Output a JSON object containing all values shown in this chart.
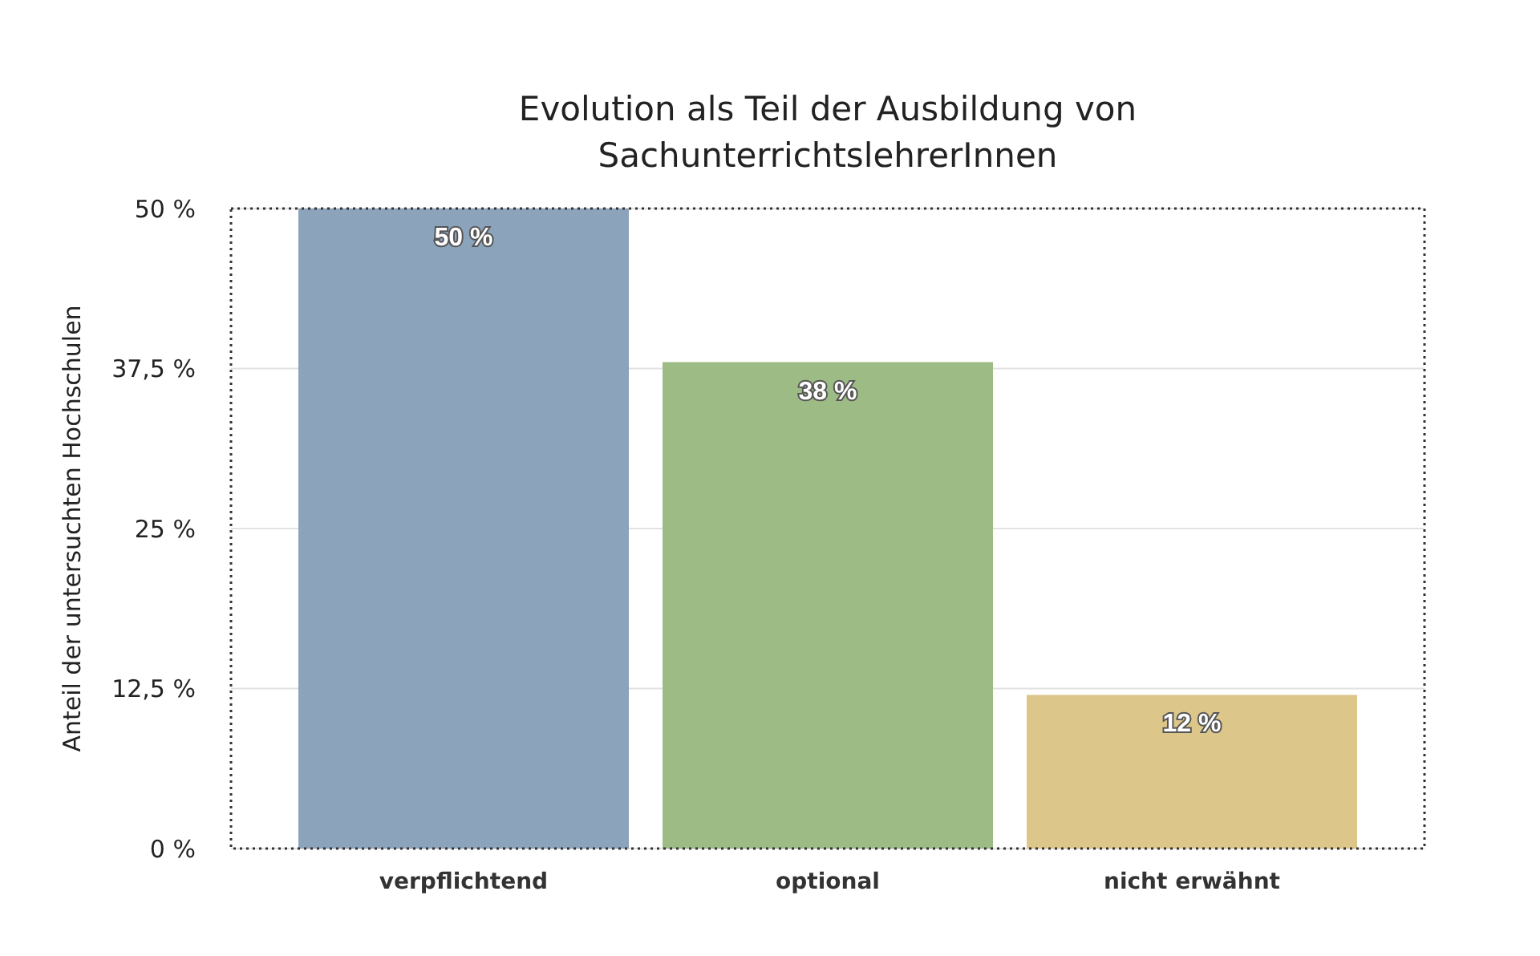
{
  "chart_data": {
    "type": "bar",
    "title": "Evolution als Teil der Ausbildung von SachunterrichtslehrerInnen",
    "ylabel": "Anteil der untersuchten Hochschulen",
    "categories": [
      "verpflichtend",
      "optional",
      "nicht erwähnt"
    ],
    "values": [
      50,
      38,
      12
    ],
    "colors": [
      "#8ca3bc",
      "#9dbb84",
      "#dcc68a"
    ],
    "value_labels": [
      "50 %",
      "38 %",
      "12 %"
    ],
    "ylim": [
      0,
      50
    ],
    "yticks": [
      {
        "value": 0,
        "label": "0 %"
      },
      {
        "value": 12.5,
        "label": "12,5 %"
      },
      {
        "value": 25,
        "label": "25 %"
      },
      {
        "value": 37.5,
        "label": "37,5 %"
      },
      {
        "value": 50,
        "label": "50 %"
      }
    ],
    "grid": "y"
  }
}
